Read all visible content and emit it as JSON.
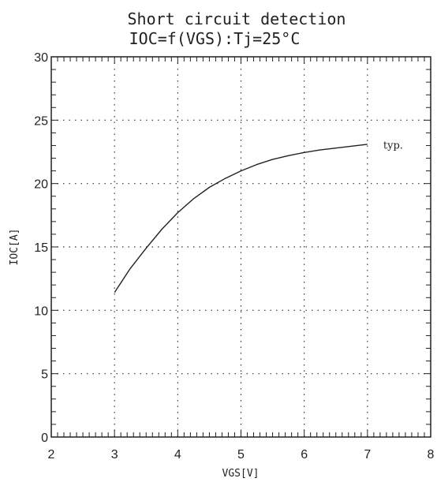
{
  "chart_data": {
    "type": "line",
    "title": "Short circuit detection",
    "subtitle": "IOC=f(VGS):Tj=25°C",
    "xlabel": "VGS[V]",
    "ylabel": "IOC[A]",
    "xlim": [
      2,
      8
    ],
    "ylim": [
      0,
      30
    ],
    "x_ticks": [
      2,
      3,
      4,
      5,
      6,
      7,
      8
    ],
    "y_ticks": [
      0,
      5,
      10,
      15,
      20,
      25,
      30
    ],
    "grid": true,
    "series": [
      {
        "name": "typ.",
        "color": "#222222",
        "x": [
          3.0,
          3.25,
          3.5,
          3.75,
          4.0,
          4.25,
          4.5,
          4.75,
          5.0,
          5.25,
          5.5,
          5.75,
          6.0,
          6.25,
          6.5,
          6.75,
          7.0
        ],
        "y": [
          11.4,
          13.3,
          14.9,
          16.4,
          17.7,
          18.8,
          19.7,
          20.4,
          21.0,
          21.5,
          21.9,
          22.2,
          22.45,
          22.65,
          22.8,
          22.95,
          23.1
        ]
      }
    ],
    "annotations": [
      {
        "text": "typ.",
        "x": 7.25,
        "y": 23.0
      }
    ]
  }
}
